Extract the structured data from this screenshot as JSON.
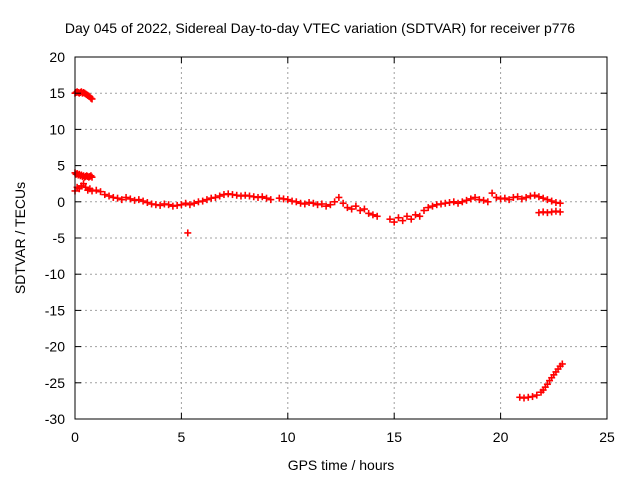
{
  "chart_data": {
    "type": "scatter",
    "title": "Day 045 of 2022, Sidereal Day-to-day VTEC variation (SDTVAR) for receiver p776",
    "xlabel": "GPS time / hours",
    "ylabel": "SDTVAR / TECUs",
    "xlim": [
      0,
      25
    ],
    "ylim": [
      -30,
      20
    ],
    "xticks": [
      0,
      5,
      10,
      15,
      20,
      25
    ],
    "yticks": [
      -30,
      -25,
      -20,
      -15,
      -10,
      -5,
      0,
      5,
      10,
      15,
      20
    ],
    "grid": true,
    "marker": "+",
    "color": "#ff0000",
    "series": [
      {
        "name": "SDTVAR",
        "x": [
          0.0,
          0.05,
          0.1,
          0.15,
          0.2,
          0.25,
          0.3,
          0.35,
          0.4,
          0.45,
          0.5,
          0.55,
          0.6,
          0.65,
          0.7,
          0.75,
          0.8,
          0.0,
          0.05,
          0.1,
          0.15,
          0.2,
          0.25,
          0.3,
          0.35,
          0.4,
          0.45,
          0.5,
          0.55,
          0.6,
          0.65,
          0.7,
          0.75,
          0.8,
          0.0,
          0.1,
          0.2,
          0.3,
          0.4,
          0.5,
          0.6,
          0.7,
          0.8,
          1.0,
          1.2,
          1.4,
          1.6,
          1.8,
          2.0,
          2.2,
          2.4,
          2.6,
          2.8,
          3.0,
          3.2,
          3.4,
          3.6,
          3.8,
          4.0,
          4.2,
          4.4,
          4.6,
          4.8,
          5.0,
          5.2,
          5.4,
          5.6,
          5.8,
          6.0,
          6.2,
          6.4,
          6.6,
          6.8,
          7.0,
          7.2,
          7.4,
          7.6,
          7.8,
          8.0,
          8.2,
          8.4,
          8.6,
          8.8,
          9.0,
          9.2,
          5.3,
          9.6,
          9.8,
          10.0,
          10.2,
          10.4,
          10.6,
          10.8,
          11.0,
          11.2,
          11.4,
          11.6,
          11.8,
          12.0,
          12.2,
          12.4,
          12.6,
          12.8,
          13.0,
          13.2,
          13.4,
          13.6,
          13.8,
          14.0,
          14.2,
          14.8,
          15.0,
          15.2,
          15.4,
          15.6,
          15.8,
          16.0,
          16.2,
          16.4,
          16.6,
          16.8,
          17.0,
          17.2,
          17.4,
          17.6,
          17.8,
          18.0,
          18.2,
          18.4,
          18.6,
          18.8,
          19.0,
          19.2,
          19.4,
          19.6,
          19.8,
          20.0,
          20.2,
          20.4,
          20.6,
          20.8,
          21.0,
          21.2,
          21.4,
          21.6,
          21.8,
          22.0,
          22.2,
          22.4,
          22.6,
          22.8,
          21.8,
          22.0,
          22.2,
          22.4,
          22.6,
          22.8,
          20.9,
          21.1,
          21.3,
          21.5,
          21.7,
          21.9,
          22.0,
          22.1,
          22.2,
          22.3,
          22.4,
          22.5,
          22.6,
          22.7,
          22.8,
          22.9
        ],
        "y": [
          15.0,
          15.1,
          15.2,
          15.1,
          15.0,
          15.1,
          15.2,
          15.0,
          15.1,
          15.0,
          14.9,
          14.8,
          14.7,
          14.6,
          14.5,
          14.3,
          14.2,
          4.0,
          3.8,
          3.9,
          3.7,
          3.8,
          3.6,
          3.7,
          3.5,
          3.6,
          3.4,
          3.5,
          3.6,
          3.5,
          3.4,
          3.5,
          3.6,
          3.4,
          1.5,
          2.0,
          1.8,
          2.2,
          2.5,
          2.0,
          1.6,
          1.8,
          1.5,
          1.6,
          1.4,
          1.0,
          0.8,
          0.6,
          0.5,
          0.3,
          0.6,
          0.4,
          0.2,
          0.3,
          0.1,
          -0.1,
          -0.3,
          -0.4,
          -0.5,
          -0.3,
          -0.4,
          -0.6,
          -0.5,
          -0.4,
          -0.2,
          -0.4,
          -0.2,
          0.0,
          0.1,
          0.3,
          0.5,
          0.6,
          0.8,
          1.0,
          1.1,
          1.0,
          0.9,
          0.8,
          0.9,
          0.8,
          0.7,
          0.6,
          0.7,
          0.5,
          0.3,
          -4.3,
          0.5,
          0.4,
          0.3,
          0.1,
          0.0,
          -0.2,
          -0.3,
          -0.1,
          -0.2,
          -0.4,
          -0.3,
          -0.6,
          -0.4,
          0.0,
          0.6,
          -0.2,
          -0.8,
          -1.0,
          -0.6,
          -1.2,
          -1.0,
          -1.6,
          -1.8,
          -2.0,
          -2.4,
          -2.8,
          -2.2,
          -2.6,
          -2.0,
          -2.4,
          -1.8,
          -2.0,
          -1.2,
          -0.8,
          -0.6,
          -0.4,
          -0.3,
          -0.2,
          -0.1,
          0.0,
          -0.2,
          0.0,
          0.2,
          0.4,
          0.6,
          0.3,
          0.2,
          0.0,
          1.2,
          0.6,
          0.4,
          0.5,
          0.3,
          0.6,
          0.7,
          0.4,
          0.6,
          0.8,
          0.9,
          0.7,
          0.5,
          0.3,
          0.1,
          -0.1,
          -0.2,
          -1.5,
          -1.4,
          -1.5,
          -1.4,
          -1.3,
          -1.4,
          -27.0,
          -27.1,
          -27.0,
          -26.9,
          -26.7,
          -26.3,
          -26.0,
          -25.6,
          -25.2,
          -24.7,
          -24.3,
          -23.9,
          -23.5,
          -23.1,
          -22.7,
          -22.4
        ]
      }
    ]
  }
}
